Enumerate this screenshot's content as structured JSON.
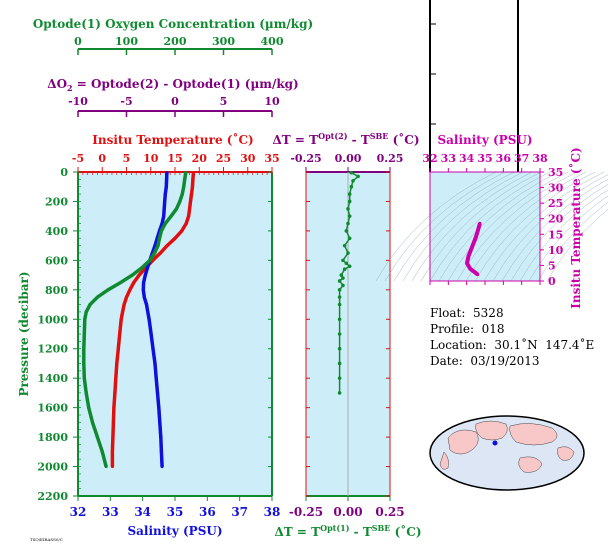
{
  "colors": {
    "green": "#108a30",
    "red": "#e01010",
    "blue": "#1010dd",
    "purple": "#800080",
    "magenta": "#cc00aa",
    "panel_bg": "#cdeef8"
  },
  "top_axes": {
    "oxygen": {
      "label": "Optode(1) Oxygen Concentration (µm/kg)",
      "ticks": [
        "0",
        "100",
        "200",
        "300",
        "400"
      ]
    },
    "delta_o2": {
      "label_prefix": "ΔO",
      "label_sub": "2",
      "label_suffix": " = Optode(2) - Optode(1)     (µm/kg)",
      "ticks": [
        "-10",
        "-5",
        "0",
        "5",
        "10"
      ]
    }
  },
  "info": {
    "float": "Float:  5328",
    "profile": "Profile:  018",
    "location": "Location:  30.1˚N  147.4˚E",
    "date": "Date:  03/19/2013"
  },
  "footer_tag": "TSO/EIRASS0/C",
  "chart_data": [
    {
      "type": "line",
      "title": "Insitu Temperature (˚C)",
      "xlabel_top": "Insitu Temperature (˚C)",
      "xlabel_bottom": "Salinity (PSU)",
      "ylabel": "Pressure (decibar)",
      "top_ticks": [
        "-5",
        "0",
        "5",
        "10",
        "15",
        "20",
        "25",
        "30",
        "35"
      ],
      "bottom_ticks": [
        "32",
        "33",
        "34",
        "35",
        "36",
        "37",
        "38"
      ],
      "y_ticks": [
        "0",
        "200",
        "400",
        "600",
        "800",
        "1000",
        "1200",
        "1400",
        "1600",
        "1800",
        "2000",
        "2200"
      ],
      "ylim": [
        2200,
        0
      ],
      "temp_xlim": [
        -5,
        35
      ],
      "sal_xlim": [
        32,
        38
      ],
      "oxy_xlim": [
        0,
        400
      ],
      "series": [
        {
          "name": "Insitu Temperature",
          "axis": "temperature",
          "color": "red",
          "points": [
            [
              18.8,
              5
            ],
            [
              18.7,
              50
            ],
            [
              18.6,
              100
            ],
            [
              18.4,
              150
            ],
            [
              18.2,
              200
            ],
            [
              18.0,
              250
            ],
            [
              17.8,
              300
            ],
            [
              17.3,
              350
            ],
            [
              16.4,
              400
            ],
            [
              15.0,
              450
            ],
            [
              13.4,
              500
            ],
            [
              12.0,
              550
            ],
            [
              10.4,
              600
            ],
            [
              9.0,
              650
            ],
            [
              7.6,
              700
            ],
            [
              6.5,
              750
            ],
            [
              5.7,
              800
            ],
            [
              5.0,
              850
            ],
            [
              4.5,
              900
            ],
            [
              4.2,
              950
            ],
            [
              3.9,
              1000
            ],
            [
              3.6,
              1100
            ],
            [
              3.3,
              1200
            ],
            [
              3.0,
              1300
            ],
            [
              2.8,
              1400
            ],
            [
              2.6,
              1500
            ],
            [
              2.4,
              1600
            ],
            [
              2.3,
              1700
            ],
            [
              2.2,
              1800
            ],
            [
              2.1,
              1900
            ],
            [
              2.1,
              2000
            ]
          ]
        },
        {
          "name": "Salinity",
          "axis": "salinity",
          "color": "blue",
          "points": [
            [
              34.75,
              5
            ],
            [
              34.74,
              50
            ],
            [
              34.73,
              100
            ],
            [
              34.7,
              150
            ],
            [
              34.68,
              200
            ],
            [
              34.65,
              300
            ],
            [
              34.6,
              350
            ],
            [
              34.52,
              400
            ],
            [
              34.45,
              450
            ],
            [
              34.38,
              500
            ],
            [
              34.3,
              550
            ],
            [
              34.22,
              600
            ],
            [
              34.15,
              650
            ],
            [
              34.08,
              700
            ],
            [
              34.03,
              750
            ],
            [
              34.02,
              800
            ],
            [
              34.05,
              850
            ],
            [
              34.12,
              900
            ],
            [
              34.2,
              1000
            ],
            [
              34.26,
              1100
            ],
            [
              34.32,
              1200
            ],
            [
              34.38,
              1300
            ],
            [
              34.42,
              1400
            ],
            [
              34.46,
              1500
            ],
            [
              34.5,
              1600
            ],
            [
              34.53,
              1700
            ],
            [
              34.56,
              1800
            ],
            [
              34.58,
              1900
            ],
            [
              34.6,
              2000
            ]
          ]
        },
        {
          "name": "Optode(1) Oxygen Concentration",
          "axis": "oxygen",
          "color": "green",
          "points": [
            [
              222,
              5
            ],
            [
              220,
              50
            ],
            [
              218,
              100
            ],
            [
              215,
              150
            ],
            [
              210,
              200
            ],
            [
              203,
              250
            ],
            [
              192,
              300
            ],
            [
              180,
              350
            ],
            [
              172,
              400
            ],
            [
              168,
              450
            ],
            [
              165,
              500
            ],
            [
              158,
              550
            ],
            [
              148,
              600
            ],
            [
              132,
              650
            ],
            [
              112,
              700
            ],
            [
              88,
              750
            ],
            [
              62,
              800
            ],
            [
              40,
              850
            ],
            [
              25,
              900
            ],
            [
              17,
              950
            ],
            [
              14,
              1000
            ],
            [
              13,
              1100
            ],
            [
              12,
              1200
            ],
            [
              12,
              1300
            ],
            [
              13,
              1400
            ],
            [
              17,
              1500
            ],
            [
              22,
              1600
            ],
            [
              30,
              1700
            ],
            [
              40,
              1800
            ],
            [
              50,
              1900
            ],
            [
              58,
              2000
            ]
          ]
        }
      ]
    },
    {
      "type": "scatter",
      "xlabel_top": "ΔT = T^Opt(2) - T^SBE (˚C)",
      "xlabel_bottom": "ΔT = T^Opt(1) - T^SBE (˚C)",
      "xlim": [
        -0.25,
        0.25
      ],
      "ylim": [
        2200,
        0
      ],
      "ticks": [
        "-0.25",
        "0.00",
        "0.25"
      ],
      "series": [
        {
          "name": "ΔT",
          "color": "green",
          "points": [
            [
              0.02,
              5
            ],
            [
              0.06,
              30
            ],
            [
              0.03,
              60
            ],
            [
              0.02,
              100
            ],
            [
              0.01,
              150
            ],
            [
              0.01,
              200
            ],
            [
              0.0,
              250
            ],
            [
              0.01,
              300
            ],
            [
              0.0,
              350
            ],
            [
              -0.01,
              400
            ],
            [
              0.01,
              450
            ],
            [
              -0.02,
              500
            ],
            [
              0.0,
              550
            ],
            [
              -0.03,
              600
            ],
            [
              -0.01,
              620
            ],
            [
              0.01,
              640
            ],
            [
              -0.02,
              660
            ],
            [
              -0.04,
              700
            ],
            [
              -0.03,
              720
            ],
            [
              -0.05,
              740
            ],
            [
              -0.03,
              770
            ],
            [
              -0.05,
              800
            ],
            [
              -0.05,
              850
            ],
            [
              -0.05,
              900
            ],
            [
              -0.05,
              1000
            ],
            [
              -0.05,
              1100
            ],
            [
              -0.05,
              1200
            ],
            [
              -0.05,
              1300
            ],
            [
              -0.05,
              1400
            ],
            [
              -0.05,
              1500
            ]
          ]
        }
      ],
      "top_title_parts": [
        "ΔT = T",
        "Opt(2)",
        " - T",
        "SBE",
        " (˚C)"
      ],
      "bottom_title_parts": [
        "ΔT = T",
        "Opt(1)",
        " - T",
        "SBE",
        " (˚C)"
      ]
    },
    {
      "type": "line",
      "title": "Salinity (PSU)",
      "ylabel": "Insitu Temperature (˚C)",
      "xlim": [
        32,
        38
      ],
      "ylim": [
        0,
        35
      ],
      "x_ticks": [
        "32",
        "33",
        "34",
        "35",
        "36",
        "37",
        "38"
      ],
      "y_ticks": [
        "0",
        "5",
        "10",
        "15",
        "20",
        "25",
        "30",
        "35"
      ],
      "series": [
        {
          "name": "T-S",
          "color": "magenta",
          "points": [
            [
              34.6,
              2.1
            ],
            [
              34.45,
              2.8
            ],
            [
              34.2,
              3.9
            ],
            [
              34.02,
              5.7
            ],
            [
              34.1,
              8.0
            ],
            [
              34.3,
              11.0
            ],
            [
              34.5,
              14.0
            ],
            [
              34.65,
              17.0
            ],
            [
              34.72,
              18.5
            ]
          ]
        }
      ]
    }
  ]
}
